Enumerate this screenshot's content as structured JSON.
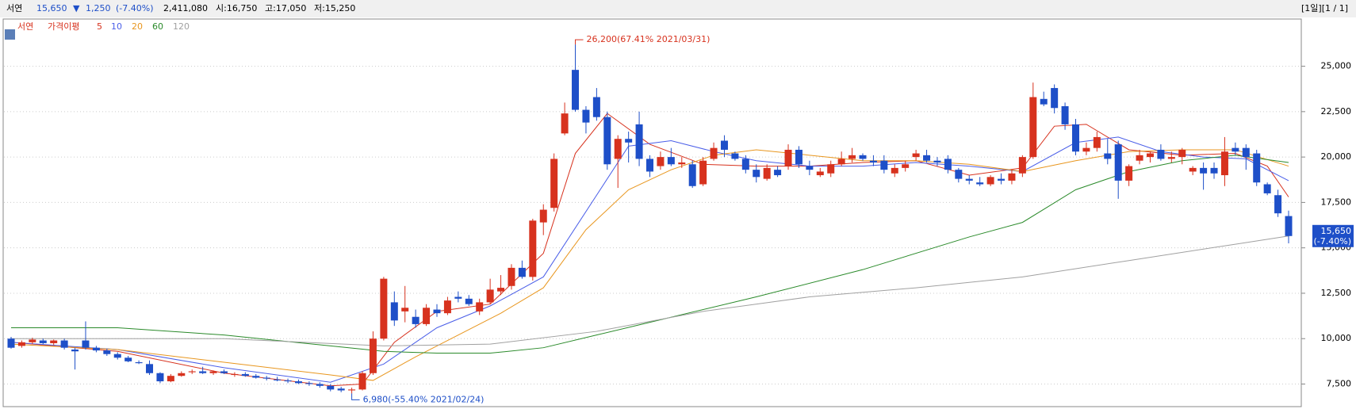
{
  "header": {
    "name": "서연",
    "price": "15,650",
    "arrow": "▼",
    "change": "1,250",
    "change_pct": "(-7.40%)",
    "volume": "2,411,080",
    "open": "시:16,750",
    "high": "고:17,050",
    "low": "저:15,250",
    "period": "[1일][1 / 1]"
  },
  "chart_data": {
    "type": "candlestick",
    "legend_title": "서연",
    "ma_title": "가격이평",
    "ylim": [
      6300,
      27600
    ],
    "yticks": [
      {
        "value": 7500,
        "label": "7,500"
      },
      {
        "value": 10000,
        "label": "10,000"
      },
      {
        "value": 12500,
        "label": "12,500"
      },
      {
        "value": 15000,
        "label": "15,000"
      },
      {
        "value": 17500,
        "label": "17,500"
      },
      {
        "value": 20000,
        "label": "20,000"
      },
      {
        "value": 22500,
        "label": "22,500"
      },
      {
        "value": 25000,
        "label": "25,000"
      }
    ],
    "grid": true,
    "up_color": "#d7321e",
    "down_color": "#1e4fc8",
    "ohlc": [
      [
        10000,
        10100,
        9450,
        9500
      ],
      [
        9600,
        9900,
        9500,
        9800
      ],
      [
        9800,
        10050,
        9700,
        9950
      ],
      [
        9900,
        10000,
        9700,
        9750
      ],
      [
        9750,
        9950,
        9650,
        9900
      ],
      [
        9900,
        10000,
        9400,
        9500
      ],
      [
        9400,
        9500,
        8300,
        9300
      ],
      [
        9900,
        10950,
        9400,
        9500
      ],
      [
        9500,
        9600,
        9250,
        9350
      ],
      [
        9350,
        9450,
        9050,
        9150
      ],
      [
        9150,
        9250,
        8850,
        8950
      ],
      [
        8950,
        9050,
        8700,
        8750
      ],
      [
        8700,
        8800,
        8600,
        8650
      ],
      [
        8600,
        8800,
        8000,
        8100
      ],
      [
        8100,
        8150,
        7550,
        7650
      ],
      [
        7650,
        8050,
        7600,
        7950
      ],
      [
        7950,
        8200,
        7900,
        8100
      ],
      [
        8150,
        8300,
        8050,
        8200
      ],
      [
        8200,
        8450,
        8050,
        8100
      ],
      [
        8100,
        8250,
        8000,
        8200
      ],
      [
        8200,
        8300,
        8050,
        8100
      ],
      [
        8000,
        8150,
        7900,
        8050
      ],
      [
        8050,
        8150,
        7900,
        7950
      ],
      [
        7950,
        8050,
        7800,
        7850
      ],
      [
        7850,
        7950,
        7700,
        7800
      ],
      [
        7750,
        7900,
        7650,
        7700
      ],
      [
        7700,
        7800,
        7550,
        7650
      ],
      [
        7650,
        7750,
        7500,
        7550
      ],
      [
        7550,
        7650,
        7400,
        7500
      ],
      [
        7500,
        7600,
        7300,
        7400
      ],
      [
        7400,
        7500,
        7100,
        7200
      ],
      [
        7250,
        7350,
        7050,
        7150
      ],
      [
        7150,
        7300,
        6980,
        7200
      ],
      [
        7200,
        8200,
        7150,
        8100
      ],
      [
        8100,
        10400,
        8000,
        10000
      ],
      [
        10000,
        13400,
        9900,
        13300
      ],
      [
        12000,
        12600,
        10700,
        11000
      ],
      [
        11500,
        12900,
        10900,
        11700
      ],
      [
        11200,
        11600,
        10600,
        10800
      ],
      [
        10800,
        11900,
        10700,
        11700
      ],
      [
        11600,
        11900,
        11200,
        11400
      ],
      [
        11400,
        12300,
        11300,
        12100
      ],
      [
        12300,
        12600,
        12000,
        12200
      ],
      [
        12200,
        12400,
        11800,
        11900
      ],
      [
        11500,
        12200,
        11300,
        12000
      ],
      [
        12000,
        13300,
        11900,
        12700
      ],
      [
        12600,
        13500,
        12400,
        12800
      ],
      [
        12900,
        14100,
        12700,
        13900
      ],
      [
        13900,
        14300,
        13300,
        13400
      ],
      [
        13400,
        16600,
        13200,
        16500
      ],
      [
        16400,
        17400,
        15700,
        17100
      ],
      [
        17200,
        20200,
        17000,
        19900
      ],
      [
        21300,
        23000,
        21200,
        22400
      ],
      [
        24800,
        26200,
        22500,
        22600
      ],
      [
        22600,
        22800,
        21300,
        21900
      ],
      [
        23300,
        23800,
        22000,
        22200
      ],
      [
        22200,
        22500,
        19300,
        19600
      ],
      [
        19900,
        21200,
        18300,
        21000
      ],
      [
        21000,
        21400,
        19700,
        20800
      ],
      [
        21800,
        22500,
        19500,
        19900
      ],
      [
        19900,
        20100,
        18900,
        19200
      ],
      [
        19500,
        20300,
        19300,
        20000
      ],
      [
        20000,
        20500,
        19500,
        19600
      ],
      [
        19600,
        20000,
        19400,
        19700
      ],
      [
        19600,
        19800,
        18300,
        18400
      ],
      [
        18500,
        20000,
        18400,
        19800
      ],
      [
        19900,
        20800,
        19800,
        20500
      ],
      [
        20900,
        21200,
        20000,
        20400
      ],
      [
        20200,
        20300,
        19800,
        19900
      ],
      [
        19900,
        20100,
        19100,
        19300
      ],
      [
        19300,
        19600,
        18600,
        18900
      ],
      [
        18800,
        19600,
        18700,
        19400
      ],
      [
        19300,
        19500,
        18900,
        19000
      ],
      [
        19500,
        20700,
        19300,
        20400
      ],
      [
        20400,
        20600,
        19400,
        19600
      ],
      [
        19500,
        19800,
        19000,
        19300
      ],
      [
        19000,
        19400,
        18900,
        19200
      ],
      [
        19100,
        19800,
        18900,
        19600
      ],
      [
        19600,
        20300,
        19500,
        19900
      ],
      [
        19900,
        20500,
        19700,
        20100
      ],
      [
        20100,
        20200,
        19800,
        19900
      ],
      [
        19800,
        20100,
        19500,
        19700
      ],
      [
        19800,
        20100,
        19100,
        19300
      ],
      [
        19100,
        19600,
        18900,
        19400
      ],
      [
        19400,
        19800,
        19200,
        19600
      ],
      [
        20000,
        20400,
        19800,
        20200
      ],
      [
        20100,
        20400,
        19700,
        19800
      ],
      [
        19800,
        20000,
        19500,
        19700
      ],
      [
        19900,
        20100,
        19100,
        19300
      ],
      [
        19300,
        19400,
        18600,
        18800
      ],
      [
        18800,
        19000,
        18500,
        18700
      ],
      [
        18600,
        18900,
        18400,
        18500
      ],
      [
        18500,
        19000,
        18400,
        18900
      ],
      [
        18800,
        19100,
        18500,
        18700
      ],
      [
        18700,
        19300,
        18500,
        19100
      ],
      [
        19100,
        20100,
        18900,
        20000
      ],
      [
        20000,
        24100,
        19900,
        23300
      ],
      [
        23200,
        23600,
        22800,
        22900
      ],
      [
        23800,
        24000,
        22400,
        22700
      ],
      [
        22800,
        23000,
        21500,
        21800
      ],
      [
        21800,
        22100,
        20100,
        20300
      ],
      [
        20300,
        20800,
        20100,
        20500
      ],
      [
        20500,
        21400,
        20300,
        21100
      ],
      [
        20200,
        21000,
        19600,
        19900
      ],
      [
        20700,
        20900,
        17700,
        18700
      ],
      [
        18700,
        19600,
        18400,
        19500
      ],
      [
        19800,
        20400,
        19600,
        20100
      ],
      [
        20000,
        20300,
        19700,
        20200
      ],
      [
        20400,
        20700,
        19800,
        19900
      ],
      [
        19900,
        20300,
        19700,
        20000
      ],
      [
        20000,
        20500,
        19600,
        20400
      ],
      [
        19200,
        19500,
        19000,
        19400
      ],
      [
        19400,
        19700,
        18200,
        19100
      ],
      [
        19400,
        19700,
        18800,
        19100
      ],
      [
        19000,
        21100,
        18400,
        20300
      ],
      [
        20500,
        20800,
        20100,
        20300
      ],
      [
        20500,
        20700,
        19300,
        20000
      ],
      [
        20200,
        20400,
        18400,
        18600
      ],
      [
        18500,
        18600,
        17900,
        18000
      ],
      [
        17900,
        18200,
        16700,
        16900
      ],
      [
        16750,
        17050,
        15250,
        15650
      ]
    ],
    "series": [
      {
        "name": "5",
        "color": "#d7321e",
        "x": [
          0,
          10,
          20,
          30,
          33,
          36,
          40,
          45,
          50,
          53,
          56,
          60,
          65,
          70,
          75,
          80,
          85,
          90,
          95,
          98,
          101,
          105,
          110,
          115,
          118,
          120
        ],
        "values": [
          9800,
          9300,
          8100,
          7400,
          7500,
          9800,
          11500,
          11900,
          14700,
          20200,
          22400,
          20700,
          19600,
          19500,
          19500,
          19700,
          19800,
          19000,
          19400,
          21700,
          21800,
          20400,
          20100,
          20200,
          19500,
          17800
        ]
      },
      {
        "name": "10",
        "color": "#4a5ee8",
        "x": [
          0,
          10,
          20,
          30,
          35,
          40,
          45,
          50,
          55,
          58,
          62,
          66,
          70,
          75,
          80,
          85,
          90,
          95,
          100,
          104,
          108,
          112,
          116,
          120
        ],
        "values": [
          9800,
          9400,
          8400,
          7600,
          8600,
          10600,
          11800,
          13400,
          17900,
          20600,
          20900,
          20300,
          19800,
          19500,
          19500,
          19700,
          19500,
          19200,
          20800,
          21100,
          20300,
          20000,
          19900,
          18700
        ]
      },
      {
        "name": "20",
        "color": "#e8961e",
        "x": [
          0,
          10,
          20,
          30,
          34,
          38,
          42,
          46,
          50,
          54,
          58,
          62,
          66,
          70,
          75,
          80,
          85,
          90,
          95,
          100,
          105,
          110,
          115,
          120
        ],
        "values": [
          9700,
          9400,
          8700,
          8000,
          7700,
          9000,
          10200,
          11400,
          12800,
          16000,
          18200,
          19300,
          20100,
          20400,
          20100,
          19800,
          19800,
          19600,
          19200,
          19800,
          20300,
          20400,
          20400,
          19500
        ]
      },
      {
        "name": "60",
        "color": "#2a8a2a",
        "x": [
          0,
          10,
          20,
          30,
          35,
          40,
          45,
          50,
          55,
          60,
          70,
          80,
          90,
          95,
          100,
          105,
          110,
          115,
          120
        ],
        "values": [
          10600,
          10600,
          10200,
          9600,
          9300,
          9200,
          9200,
          9500,
          10200,
          10900,
          12300,
          13800,
          15600,
          16400,
          18200,
          19200,
          19800,
          20100,
          19700
        ]
      },
      {
        "name": "120",
        "color": "#a0a0a0",
        "x": [
          0,
          20,
          35,
          45,
          55,
          65,
          75,
          85,
          95,
          105,
          115,
          120
        ],
        "values": [
          10000,
          10000,
          9600,
          9700,
          10400,
          11500,
          12300,
          12800,
          13400,
          14300,
          15200,
          15650
        ]
      }
    ],
    "annotations": [
      {
        "text": "26,200(67.41% 2021/03/31)",
        "x": 53,
        "value": 26200
      },
      {
        "text": "6,980(-55.40% 2021/02/24)",
        "x": 32,
        "value": 6980
      }
    ],
    "last_price": {
      "label": "15,650",
      "value": 15650,
      "sub": "(-7.40%)"
    }
  }
}
